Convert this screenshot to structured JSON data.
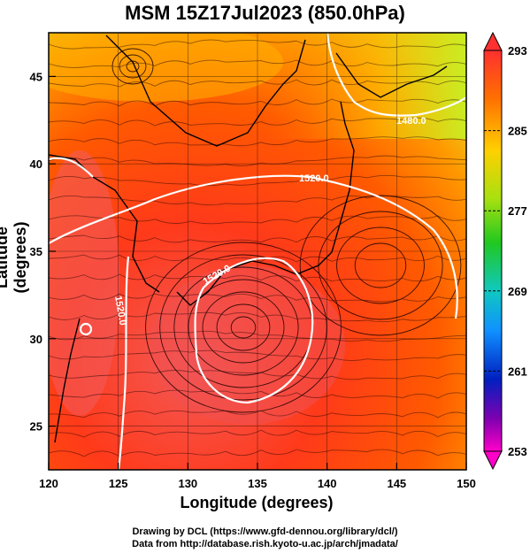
{
  "title": "MSM 15Z17Jul2023 (850.0hPa)",
  "xlabel": "Longitude (degrees)",
  "ylabel": "Latitude  (degrees)",
  "xticks": [
    "120",
    "125",
    "130",
    "135",
    "140",
    "145",
    "150"
  ],
  "yticks": [
    "25",
    "30",
    "35",
    "40",
    "45"
  ],
  "colorbar_ticks": [
    "293",
    "285",
    "277",
    "269",
    "261",
    "253"
  ],
  "contour_labels": [
    "1480.0",
    "1520.0",
    "1520.0",
    "1520.0"
  ],
  "credits": {
    "line1": "Drawing by DCL (https://www.gfd-dennou.org/library/dcl/)",
    "line2": "Data from http://database.rish.kyoto-u.ac.jp/arch/jmadata/"
  },
  "chart_data": {
    "type": "heatmap",
    "title": "MSM 15Z17Jul2023 (850.0hPa)",
    "xlabel": "Longitude (degrees)",
    "ylabel": "Latitude  (degrees)",
    "xlim": [
      120,
      150
    ],
    "ylim": [
      22.5,
      47.5
    ],
    "colorbar": {
      "min": 253,
      "max": 293,
      "ticks": [
        293,
        285,
        277,
        269,
        261,
        253
      ]
    },
    "contour_labels": [
      1480,
      1520,
      1520,
      1520
    ],
    "colors": {
      "warm": "#ff3300",
      "hot": "#f25a5a",
      "mid": "#ff8800",
      "cool": "#c8ee22"
    }
  }
}
